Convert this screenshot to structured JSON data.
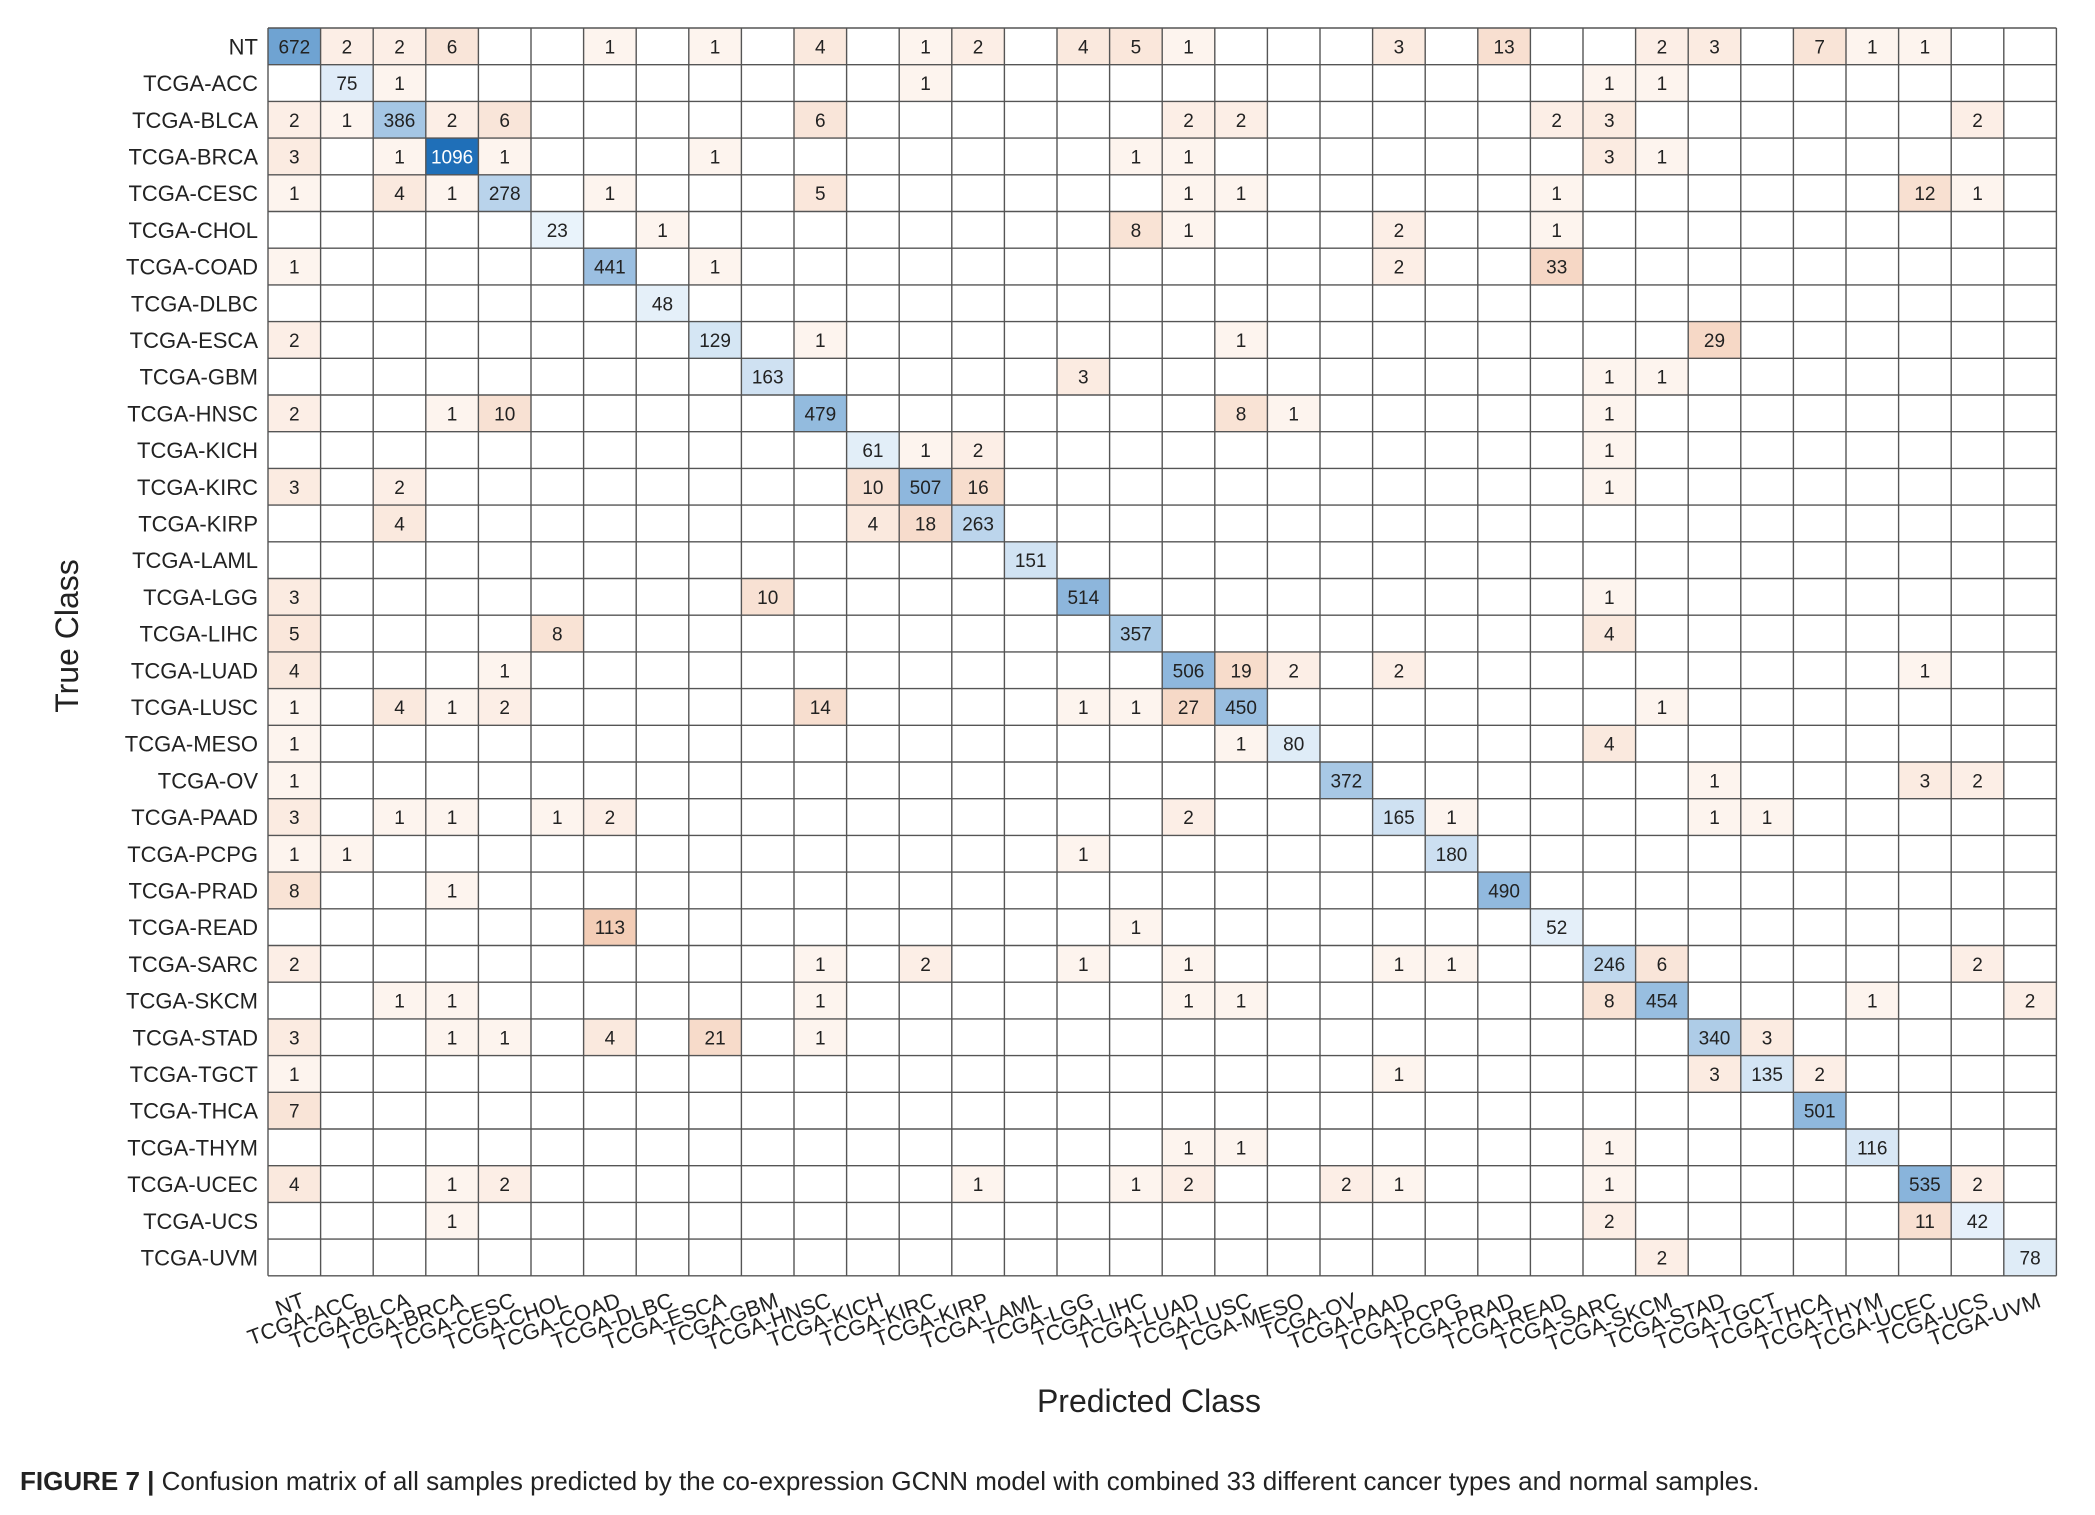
{
  "chart_data": {
    "type": "heatmap",
    "title": "",
    "xlabel": "Predicted Class",
    "ylabel": "True Class",
    "classes": [
      "NT",
      "TCGA-ACC",
      "TCGA-BLCA",
      "TCGA-BRCA",
      "TCGA-CESC",
      "TCGA-CHOL",
      "TCGA-COAD",
      "TCGA-DLBC",
      "TCGA-ESCA",
      "TCGA-GBM",
      "TCGA-HNSC",
      "TCGA-KICH",
      "TCGA-KIRC",
      "TCGA-KIRP",
      "TCGA-LAML",
      "TCGA-LGG",
      "TCGA-LIHC",
      "TCGA-LUAD",
      "TCGA-LUSC",
      "TCGA-MESO",
      "TCGA-OV",
      "TCGA-PAAD",
      "TCGA-PCPG",
      "TCGA-PRAD",
      "TCGA-READ",
      "TCGA-SARC",
      "TCGA-SKCM",
      "TCGA-STAD",
      "TCGA-TGCT",
      "TCGA-THCA",
      "TCGA-THYM",
      "TCGA-UCEC",
      "TCGA-UCS",
      "TCGA-UVM"
    ],
    "rows": [
      [
        672,
        2,
        2,
        6,
        0,
        0,
        1,
        0,
        1,
        0,
        4,
        0,
        1,
        2,
        0,
        4,
        5,
        1,
        0,
        0,
        0,
        3,
        0,
        13,
        0,
        0,
        2,
        3,
        0,
        7,
        1,
        1,
        0,
        0
      ],
      [
        0,
        75,
        1,
        0,
        0,
        0,
        0,
        0,
        0,
        0,
        0,
        0,
        1,
        0,
        0,
        0,
        0,
        0,
        0,
        0,
        0,
        0,
        0,
        0,
        0,
        1,
        1,
        0,
        0,
        0,
        0,
        0,
        0,
        0
      ],
      [
        2,
        1,
        386,
        2,
        6,
        0,
        0,
        0,
        0,
        0,
        6,
        0,
        0,
        0,
        0,
        0,
        0,
        2,
        2,
        0,
        0,
        0,
        0,
        0,
        2,
        3,
        0,
        0,
        0,
        0,
        0,
        0,
        2,
        0
      ],
      [
        3,
        0,
        1,
        1096,
        1,
        0,
        0,
        0,
        1,
        0,
        0,
        0,
        0,
        0,
        0,
        0,
        1,
        1,
        0,
        0,
        0,
        0,
        0,
        0,
        0,
        3,
        1,
        0,
        0,
        0,
        0,
        0,
        0,
        0
      ],
      [
        1,
        0,
        4,
        1,
        278,
        0,
        1,
        0,
        0,
        0,
        5,
        0,
        0,
        0,
        0,
        0,
        0,
        1,
        1,
        0,
        0,
        0,
        0,
        0,
        1,
        0,
        0,
        0,
        0,
        0,
        0,
        12,
        1,
        0
      ],
      [
        0,
        0,
        0,
        0,
        0,
        23,
        0,
        1,
        0,
        0,
        0,
        0,
        0,
        0,
        0,
        0,
        8,
        1,
        0,
        0,
        0,
        2,
        0,
        0,
        1,
        0,
        0,
        0,
        0,
        0,
        0,
        0,
        0,
        0
      ],
      [
        1,
        0,
        0,
        0,
        0,
        0,
        441,
        0,
        1,
        0,
        0,
        0,
        0,
        0,
        0,
        0,
        0,
        0,
        0,
        0,
        0,
        2,
        0,
        0,
        33,
        0,
        0,
        0,
        0,
        0,
        0,
        0,
        0,
        0
      ],
      [
        0,
        0,
        0,
        0,
        0,
        0,
        0,
        48,
        0,
        0,
        0,
        0,
        0,
        0,
        0,
        0,
        0,
        0,
        0,
        0,
        0,
        0,
        0,
        0,
        0,
        0,
        0,
        0,
        0,
        0,
        0,
        0,
        0,
        0
      ],
      [
        2,
        0,
        0,
        0,
        0,
        0,
        0,
        0,
        129,
        0,
        1,
        0,
        0,
        0,
        0,
        0,
        0,
        0,
        1,
        0,
        0,
        0,
        0,
        0,
        0,
        0,
        0,
        29,
        0,
        0,
        0,
        0,
        0,
        0
      ],
      [
        0,
        0,
        0,
        0,
        0,
        0,
        0,
        0,
        0,
        163,
        0,
        0,
        0,
        0,
        0,
        3,
        0,
        0,
        0,
        0,
        0,
        0,
        0,
        0,
        0,
        1,
        1,
        0,
        0,
        0,
        0,
        0,
        0,
        0
      ],
      [
        2,
        0,
        0,
        1,
        10,
        0,
        0,
        0,
        0,
        0,
        479,
        0,
        0,
        0,
        0,
        0,
        0,
        0,
        8,
        1,
        0,
        0,
        0,
        0,
        0,
        1,
        0,
        0,
        0,
        0,
        0,
        0,
        0,
        0
      ],
      [
        0,
        0,
        0,
        0,
        0,
        0,
        0,
        0,
        0,
        0,
        0,
        61,
        1,
        2,
        0,
        0,
        0,
        0,
        0,
        0,
        0,
        0,
        0,
        0,
        0,
        1,
        0,
        0,
        0,
        0,
        0,
        0,
        0,
        0
      ],
      [
        3,
        0,
        2,
        0,
        0,
        0,
        0,
        0,
        0,
        0,
        0,
        10,
        507,
        16,
        0,
        0,
        0,
        0,
        0,
        0,
        0,
        0,
        0,
        0,
        0,
        1,
        0,
        0,
        0,
        0,
        0,
        0,
        0,
        0
      ],
      [
        0,
        0,
        4,
        0,
        0,
        0,
        0,
        0,
        0,
        0,
        0,
        4,
        18,
        263,
        0,
        0,
        0,
        0,
        0,
        0,
        0,
        0,
        0,
        0,
        0,
        0,
        0,
        0,
        0,
        0,
        0,
        0,
        0,
        0
      ],
      [
        0,
        0,
        0,
        0,
        0,
        0,
        0,
        0,
        0,
        0,
        0,
        0,
        0,
        0,
        151,
        0,
        0,
        0,
        0,
        0,
        0,
        0,
        0,
        0,
        0,
        0,
        0,
        0,
        0,
        0,
        0,
        0,
        0,
        0
      ],
      [
        3,
        0,
        0,
        0,
        0,
        0,
        0,
        0,
        0,
        10,
        0,
        0,
        0,
        0,
        0,
        514,
        0,
        0,
        0,
        0,
        0,
        0,
        0,
        0,
        0,
        1,
        0,
        0,
        0,
        0,
        0,
        0,
        0,
        0
      ],
      [
        5,
        0,
        0,
        0,
        0,
        8,
        0,
        0,
        0,
        0,
        0,
        0,
        0,
        0,
        0,
        0,
        357,
        0,
        0,
        0,
        0,
        0,
        0,
        0,
        0,
        4,
        0,
        0,
        0,
        0,
        0,
        0,
        0,
        0
      ],
      [
        4,
        0,
        0,
        0,
        1,
        0,
        0,
        0,
        0,
        0,
        0,
        0,
        0,
        0,
        0,
        0,
        0,
        506,
        19,
        2,
        0,
        2,
        0,
        0,
        0,
        0,
        0,
        0,
        0,
        0,
        0,
        1,
        0,
        0
      ],
      [
        1,
        0,
        4,
        1,
        2,
        0,
        0,
        0,
        0,
        0,
        14,
        0,
        0,
        0,
        0,
        1,
        1,
        27,
        450,
        0,
        0,
        0,
        0,
        0,
        0,
        0,
        1,
        0,
        0,
        0,
        0,
        0,
        0,
        0
      ],
      [
        1,
        0,
        0,
        0,
        0,
        0,
        0,
        0,
        0,
        0,
        0,
        0,
        0,
        0,
        0,
        0,
        0,
        0,
        1,
        80,
        0,
        0,
        0,
        0,
        0,
        4,
        0,
        0,
        0,
        0,
        0,
        0,
        0,
        0
      ],
      [
        1,
        0,
        0,
        0,
        0,
        0,
        0,
        0,
        0,
        0,
        0,
        0,
        0,
        0,
        0,
        0,
        0,
        0,
        0,
        0,
        372,
        0,
        0,
        0,
        0,
        0,
        0,
        1,
        0,
        0,
        0,
        3,
        2,
        0
      ],
      [
        3,
        0,
        1,
        1,
        0,
        1,
        2,
        0,
        0,
        0,
        0,
        0,
        0,
        0,
        0,
        0,
        0,
        2,
        0,
        0,
        0,
        165,
        1,
        0,
        0,
        0,
        0,
        1,
        1,
        0,
        0,
        0,
        0,
        0
      ],
      [
        1,
        1,
        0,
        0,
        0,
        0,
        0,
        0,
        0,
        0,
        0,
        0,
        0,
        0,
        0,
        1,
        0,
        0,
        0,
        0,
        0,
        0,
        180,
        0,
        0,
        0,
        0,
        0,
        0,
        0,
        0,
        0,
        0,
        0
      ],
      [
        8,
        0,
        0,
        1,
        0,
        0,
        0,
        0,
        0,
        0,
        0,
        0,
        0,
        0,
        0,
        0,
        0,
        0,
        0,
        0,
        0,
        0,
        0,
        490,
        0,
        0,
        0,
        0,
        0,
        0,
        0,
        0,
        0,
        0
      ],
      [
        0,
        0,
        0,
        0,
        0,
        0,
        113,
        0,
        0,
        0,
        0,
        0,
        0,
        0,
        0,
        0,
        1,
        0,
        0,
        0,
        0,
        0,
        0,
        0,
        52,
        0,
        0,
        0,
        0,
        0,
        0,
        0,
        0,
        0
      ],
      [
        2,
        0,
        0,
        0,
        0,
        0,
        0,
        0,
        0,
        0,
        1,
        0,
        2,
        0,
        0,
        1,
        0,
        1,
        0,
        0,
        0,
        1,
        1,
        0,
        0,
        246,
        6,
        0,
        0,
        0,
        0,
        0,
        2,
        0
      ],
      [
        0,
        0,
        1,
        1,
        0,
        0,
        0,
        0,
        0,
        0,
        1,
        0,
        0,
        0,
        0,
        0,
        0,
        1,
        1,
        0,
        0,
        0,
        0,
        0,
        0,
        8,
        454,
        0,
        0,
        0,
        1,
        0,
        0,
        2
      ],
      [
        3,
        0,
        0,
        1,
        1,
        0,
        4,
        0,
        21,
        0,
        1,
        0,
        0,
        0,
        0,
        0,
        0,
        0,
        0,
        0,
        0,
        0,
        0,
        0,
        0,
        0,
        0,
        340,
        3,
        0,
        0,
        0,
        0,
        0
      ],
      [
        1,
        0,
        0,
        0,
        0,
        0,
        0,
        0,
        0,
        0,
        0,
        0,
        0,
        0,
        0,
        0,
        0,
        0,
        0,
        0,
        0,
        1,
        0,
        0,
        0,
        0,
        0,
        3,
        135,
        2,
        0,
        0,
        0,
        0
      ],
      [
        7,
        0,
        0,
        0,
        0,
        0,
        0,
        0,
        0,
        0,
        0,
        0,
        0,
        0,
        0,
        0,
        0,
        0,
        0,
        0,
        0,
        0,
        0,
        0,
        0,
        0,
        0,
        0,
        0,
        501,
        0,
        0,
        0,
        0
      ],
      [
        0,
        0,
        0,
        0,
        0,
        0,
        0,
        0,
        0,
        0,
        0,
        0,
        0,
        0,
        0,
        0,
        0,
        1,
        1,
        0,
        0,
        0,
        0,
        0,
        0,
        1,
        0,
        0,
        0,
        0,
        116,
        0,
        0,
        0
      ],
      [
        4,
        0,
        0,
        1,
        2,
        0,
        0,
        0,
        0,
        0,
        0,
        0,
        0,
        1,
        0,
        0,
        1,
        2,
        0,
        0,
        2,
        1,
        0,
        0,
        0,
        1,
        0,
        0,
        0,
        0,
        0,
        535,
        2,
        0
      ],
      [
        0,
        0,
        0,
        1,
        0,
        0,
        0,
        0,
        0,
        0,
        0,
        0,
        0,
        0,
        0,
        0,
        0,
        0,
        0,
        0,
        0,
        0,
        0,
        0,
        0,
        2,
        0,
        0,
        0,
        0,
        0,
        11,
        42,
        0
      ],
      [
        0,
        0,
        0,
        0,
        0,
        0,
        0,
        0,
        0,
        0,
        0,
        0,
        0,
        0,
        0,
        0,
        0,
        0,
        0,
        0,
        0,
        0,
        0,
        0,
        0,
        0,
        2,
        0,
        0,
        0,
        0,
        0,
        0,
        78
      ]
    ],
    "colors": {
      "diag_light": "#eaf3fb",
      "diag_dark": "#1f6fb8",
      "off_light": "#fdf4ee",
      "off_dark": "#f3cdb6",
      "grid": "#555555"
    }
  },
  "caption": {
    "label": "FIGURE 7 |",
    "text": " Confusion matrix of all samples predicted by the co-expression GCNN model with combined 33 different cancer types and normal samples."
  }
}
